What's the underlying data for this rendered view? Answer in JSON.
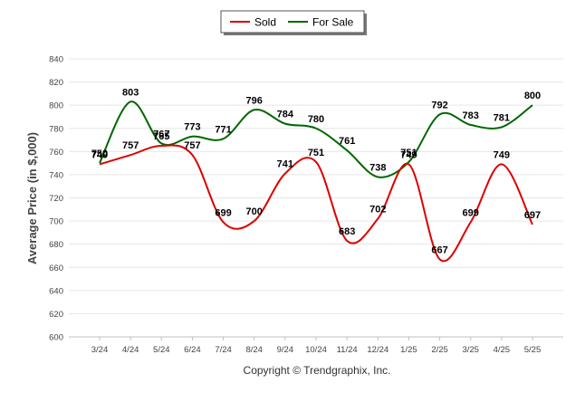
{
  "chart_data": {
    "type": "line",
    "categories": [
      "3/24",
      "4/24",
      "5/24",
      "6/24",
      "7/24",
      "8/24",
      "9/24",
      "10/24",
      "11/24",
      "12/24",
      "1/25",
      "2/25",
      "3/25",
      "4/25",
      "5/25"
    ],
    "series": [
      {
        "name": "Sold",
        "color": "#dd0000",
        "values": [
          749,
          757,
          765,
          757,
          699,
          700,
          741,
          751,
          683,
          702,
          749,
          667,
          699,
          749,
          697
        ]
      },
      {
        "name": "For Sale",
        "color": "#006600",
        "values": [
          750,
          803,
          767,
          773,
          771,
          796,
          784,
          780,
          761,
          738,
          751,
          792,
          783,
          781,
          800
        ]
      }
    ],
    "ylabel": "Average Price (in $,000)",
    "xlabel": "",
    "ylim": [
      600,
      840
    ],
    "yticks": [
      600,
      620,
      640,
      660,
      680,
      700,
      720,
      740,
      760,
      780,
      800,
      820,
      840
    ],
    "grid": true,
    "legend_position": "top-center",
    "data_labels": true
  },
  "footer": {
    "copyright": "Copyright © Trendgraphix, Inc."
  }
}
